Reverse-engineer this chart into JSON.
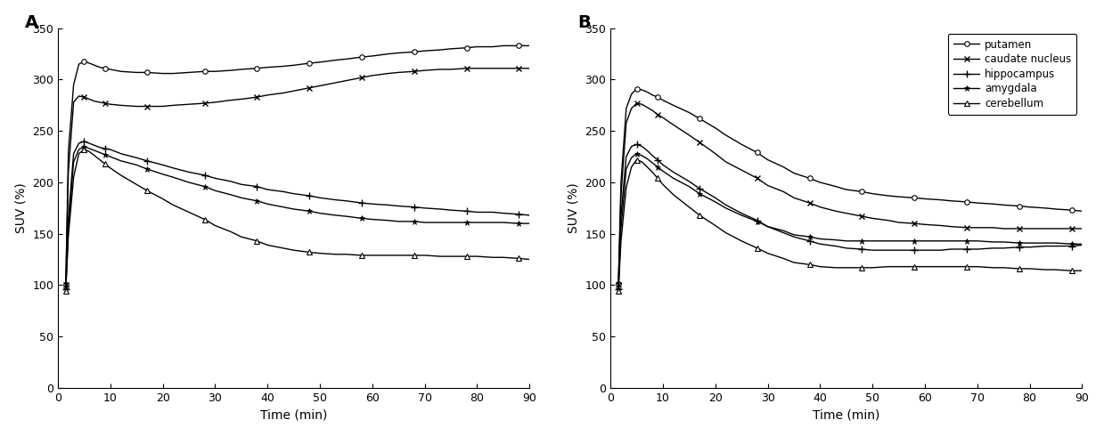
{
  "panel_A": {
    "title": "A",
    "xlabel": "Time (min)",
    "ylabel": "SUV (%)",
    "xlim": [
      0,
      90
    ],
    "ylim": [
      0,
      350
    ],
    "yticks": [
      0,
      50,
      100,
      150,
      200,
      250,
      300,
      350
    ],
    "xticks": [
      0,
      10,
      20,
      30,
      40,
      50,
      60,
      70,
      80,
      90
    ],
    "putamen": {
      "x": [
        1.5,
        2,
        3,
        4,
        5,
        6,
        7,
        8,
        9,
        10,
        12,
        15,
        17,
        20,
        22,
        25,
        28,
        30,
        33,
        35,
        38,
        40,
        43,
        45,
        48,
        50,
        53,
        55,
        58,
        60,
        63,
        65,
        68,
        70,
        73,
        75,
        78,
        80,
        83,
        85,
        88,
        90
      ],
      "y": [
        100,
        230,
        295,
        315,
        318,
        316,
        314,
        312,
        311,
        310,
        308,
        307,
        307,
        306,
        306,
        307,
        308,
        308,
        309,
        310,
        311,
        312,
        313,
        314,
        316,
        317,
        319,
        320,
        322,
        323,
        325,
        326,
        327,
        328,
        329,
        330,
        331,
        332,
        332,
        333,
        333,
        333
      ]
    },
    "caudate": {
      "x": [
        1.5,
        2,
        3,
        4,
        5,
        6,
        7,
        8,
        9,
        10,
        12,
        15,
        17,
        20,
        22,
        25,
        28,
        30,
        33,
        35,
        38,
        40,
        43,
        45,
        48,
        50,
        53,
        55,
        58,
        60,
        63,
        65,
        68,
        70,
        73,
        75,
        78,
        80,
        83,
        85,
        88,
        90
      ],
      "y": [
        100,
        210,
        278,
        284,
        283,
        281,
        279,
        278,
        277,
        276,
        275,
        274,
        274,
        274,
        275,
        276,
        277,
        278,
        280,
        281,
        283,
        285,
        287,
        289,
        292,
        294,
        297,
        299,
        302,
        304,
        306,
        307,
        308,
        309,
        310,
        310,
        311,
        311,
        311,
        311,
        311,
        311
      ]
    },
    "hippocampus": {
      "x": [
        1.5,
        2,
        3,
        4,
        5,
        6,
        7,
        8,
        9,
        10,
        12,
        15,
        17,
        20,
        22,
        25,
        28,
        30,
        33,
        35,
        38,
        40,
        43,
        45,
        48,
        50,
        53,
        55,
        58,
        60,
        63,
        65,
        68,
        70,
        73,
        75,
        78,
        80,
        83,
        85,
        88,
        90
      ],
      "y": [
        96,
        165,
        228,
        238,
        240,
        238,
        236,
        234,
        233,
        232,
        228,
        224,
        221,
        217,
        214,
        210,
        207,
        204,
        201,
        198,
        196,
        193,
        191,
        189,
        187,
        185,
        183,
        182,
        180,
        179,
        178,
        177,
        176,
        175,
        174,
        173,
        172,
        171,
        171,
        170,
        169,
        168
      ]
    },
    "amygdala": {
      "x": [
        1.5,
        2,
        3,
        4,
        5,
        6,
        7,
        8,
        9,
        10,
        12,
        15,
        17,
        20,
        22,
        25,
        28,
        30,
        33,
        35,
        38,
        40,
        43,
        45,
        48,
        50,
        53,
        55,
        58,
        60,
        63,
        65,
        68,
        70,
        73,
        75,
        78,
        80,
        83,
        85,
        88,
        90
      ],
      "y": [
        96,
        155,
        220,
        232,
        235,
        233,
        231,
        229,
        227,
        225,
        221,
        217,
        213,
        208,
        205,
        200,
        196,
        192,
        188,
        185,
        182,
        179,
        176,
        174,
        172,
        170,
        168,
        167,
        165,
        164,
        163,
        162,
        162,
        161,
        161,
        161,
        161,
        161,
        161,
        161,
        160,
        160
      ]
    },
    "cerebellum": {
      "x": [
        1.5,
        2,
        3,
        4,
        5,
        6,
        7,
        8,
        9,
        10,
        12,
        15,
        17,
        20,
        22,
        25,
        28,
        30,
        33,
        35,
        38,
        40,
        43,
        45,
        48,
        50,
        53,
        55,
        58,
        60,
        63,
        65,
        68,
        70,
        73,
        75,
        78,
        80,
        83,
        85,
        88,
        90
      ],
      "y": [
        94,
        148,
        205,
        228,
        232,
        230,
        226,
        222,
        218,
        214,
        207,
        198,
        192,
        184,
        178,
        171,
        164,
        158,
        152,
        147,
        143,
        139,
        136,
        134,
        132,
        131,
        130,
        130,
        129,
        129,
        129,
        129,
        129,
        129,
        128,
        128,
        128,
        128,
        127,
        127,
        126,
        125
      ]
    }
  },
  "panel_B": {
    "title": "B",
    "xlabel": "Time (min)",
    "ylabel": "SUV (%)",
    "xlim": [
      0,
      90
    ],
    "ylim": [
      0,
      350
    ],
    "yticks": [
      0,
      50,
      100,
      150,
      200,
      250,
      300,
      350
    ],
    "xticks": [
      0,
      10,
      20,
      30,
      40,
      50,
      60,
      70,
      80,
      90
    ],
    "putamen": {
      "x": [
        1.5,
        2,
        3,
        4,
        5,
        6,
        7,
        8,
        9,
        10,
        12,
        15,
        17,
        20,
        22,
        25,
        28,
        30,
        33,
        35,
        38,
        40,
        43,
        45,
        48,
        50,
        53,
        55,
        58,
        60,
        63,
        65,
        68,
        70,
        73,
        75,
        78,
        80,
        83,
        85,
        88,
        90
      ],
      "y": [
        101,
        200,
        272,
        286,
        291,
        290,
        288,
        285,
        283,
        280,
        275,
        268,
        262,
        253,
        246,
        237,
        229,
        222,
        215,
        209,
        204,
        200,
        196,
        193,
        191,
        189,
        187,
        186,
        185,
        184,
        183,
        182,
        181,
        180,
        179,
        178,
        177,
        176,
        175,
        174,
        173,
        172
      ]
    },
    "caudate": {
      "x": [
        1.5,
        2,
        3,
        4,
        5,
        6,
        7,
        8,
        9,
        10,
        12,
        15,
        17,
        20,
        22,
        25,
        28,
        30,
        33,
        35,
        38,
        40,
        43,
        45,
        48,
        50,
        53,
        55,
        58,
        60,
        63,
        65,
        68,
        70,
        73,
        75,
        78,
        80,
        83,
        85,
        88,
        90
      ],
      "y": [
        100,
        188,
        258,
        272,
        277,
        276,
        273,
        270,
        266,
        263,
        256,
        246,
        239,
        228,
        220,
        212,
        204,
        197,
        191,
        185,
        180,
        176,
        172,
        170,
        167,
        165,
        163,
        161,
        160,
        159,
        158,
        157,
        156,
        156,
        156,
        155,
        155,
        155,
        155,
        155,
        155,
        155
      ]
    },
    "hippocampus": {
      "x": [
        1.5,
        2,
        3,
        4,
        5,
        6,
        7,
        8,
        9,
        10,
        12,
        15,
        17,
        20,
        22,
        25,
        28,
        30,
        33,
        35,
        38,
        40,
        43,
        45,
        48,
        50,
        53,
        55,
        58,
        60,
        63,
        65,
        68,
        70,
        73,
        75,
        78,
        80,
        83,
        85,
        88,
        90
      ],
      "y": [
        96,
        168,
        225,
        235,
        237,
        235,
        231,
        226,
        222,
        217,
        210,
        201,
        194,
        185,
        178,
        170,
        163,
        157,
        151,
        147,
        143,
        140,
        138,
        136,
        135,
        134,
        134,
        134,
        134,
        134,
        134,
        135,
        135,
        135,
        136,
        136,
        137,
        137,
        138,
        138,
        138,
        139
      ]
    },
    "amygdala": {
      "x": [
        1.5,
        2,
        3,
        4,
        5,
        6,
        7,
        8,
        9,
        10,
        12,
        15,
        17,
        20,
        22,
        25,
        28,
        30,
        33,
        35,
        38,
        40,
        43,
        45,
        48,
        50,
        53,
        55,
        58,
        60,
        63,
        65,
        68,
        70,
        73,
        75,
        78,
        80,
        83,
        85,
        88,
        90
      ],
      "y": [
        96,
        155,
        213,
        224,
        228,
        226,
        223,
        219,
        215,
        211,
        204,
        196,
        189,
        181,
        175,
        168,
        162,
        157,
        153,
        149,
        147,
        145,
        144,
        143,
        143,
        143,
        143,
        143,
        143,
        143,
        143,
        143,
        143,
        143,
        142,
        142,
        141,
        141,
        141,
        141,
        140,
        140
      ]
    },
    "cerebellum": {
      "x": [
        1.5,
        2,
        3,
        4,
        5,
        6,
        7,
        8,
        9,
        10,
        12,
        15,
        17,
        20,
        22,
        25,
        28,
        30,
        33,
        35,
        38,
        40,
        43,
        45,
        48,
        50,
        53,
        55,
        58,
        60,
        63,
        65,
        68,
        70,
        73,
        75,
        78,
        80,
        83,
        85,
        88,
        90
      ],
      "y": [
        94,
        143,
        195,
        215,
        222,
        220,
        215,
        210,
        204,
        198,
        188,
        176,
        168,
        158,
        151,
        143,
        136,
        131,
        126,
        122,
        120,
        118,
        117,
        117,
        117,
        117,
        118,
        118,
        118,
        118,
        118,
        118,
        118,
        118,
        117,
        117,
        116,
        116,
        115,
        115,
        114,
        114
      ]
    }
  },
  "legend_labels": [
    "putamen",
    "caudate nucleus",
    "hippocampus",
    "amygdala",
    "cerebellum"
  ],
  "line_color": "#000000",
  "background_color": "#ffffff",
  "markersize": 4,
  "linewidth": 1.0,
  "marker_every": 4
}
